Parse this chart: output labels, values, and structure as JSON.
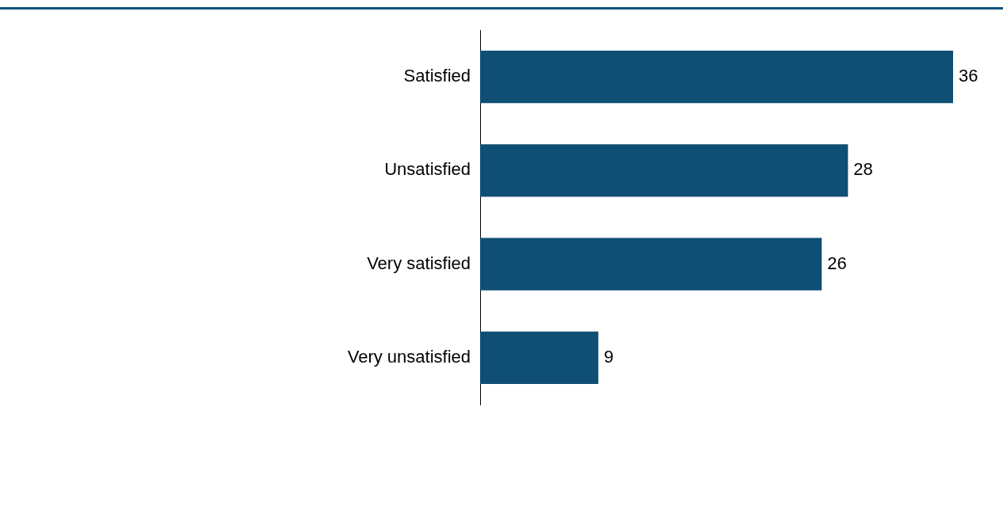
{
  "chart_data": {
    "type": "bar",
    "orientation": "horizontal",
    "categories": [
      "Satisfied",
      "Unsatisfied",
      "Very satisfied",
      "Very unsatisfied"
    ],
    "values": [
      36,
      28,
      26,
      9
    ],
    "color": "#0f4f75",
    "data_labels": true,
    "legend": false
  }
}
